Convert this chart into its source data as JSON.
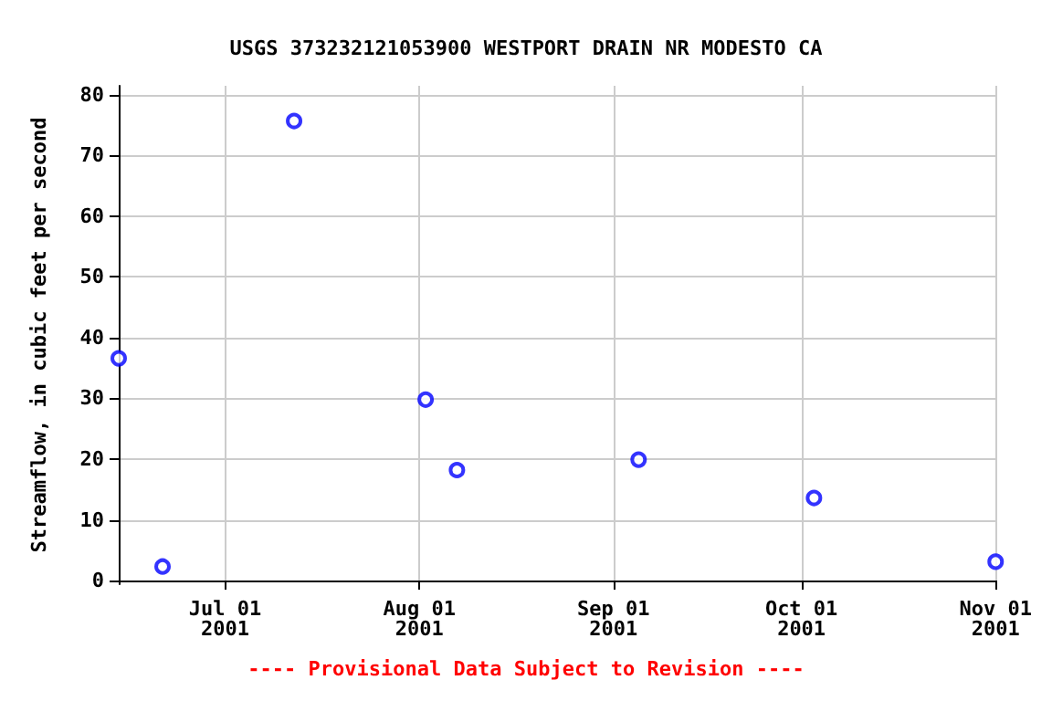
{
  "chart_data": {
    "type": "scatter",
    "title": "USGS 373232121053900 WESTPORT DRAIN NR MODESTO CA",
    "ylabel": "Streamflow, in cubic feet per second",
    "x": [
      "2001-06-14",
      "2001-06-21",
      "2001-07-12",
      "2001-08-02",
      "2001-08-07",
      "2001-09-05",
      "2001-10-03",
      "2001-11-01"
    ],
    "series": [
      {
        "color": "#0000ff",
        "values": [
          36.6,
          2.3,
          75.7,
          29.8,
          18.2,
          19.9,
          13.6,
          3.1
        ]
      }
    ],
    "marker": "circle",
    "grid": true,
    "xlim": [
      "2001-06-14",
      "2001-11-01"
    ],
    "xticks": [
      {
        "value": "2001-07-01",
        "label": "Jul 01\n2001"
      },
      {
        "value": "2001-08-01",
        "label": "Aug 01\n2001"
      },
      {
        "value": "2001-09-01",
        "label": "Sep 01\n2001"
      },
      {
        "value": "2001-10-01",
        "label": "Oct 01\n2001"
      },
      {
        "value": "2001-11-01",
        "label": "Nov 01\n2001"
      }
    ],
    "ylim": [
      -0.6,
      81.5
    ],
    "yticks": [
      0,
      10,
      20,
      30,
      40,
      50,
      60,
      70,
      80
    ],
    "annotations": [
      "---- Provisional Data Subject to Revision ----"
    ]
  }
}
